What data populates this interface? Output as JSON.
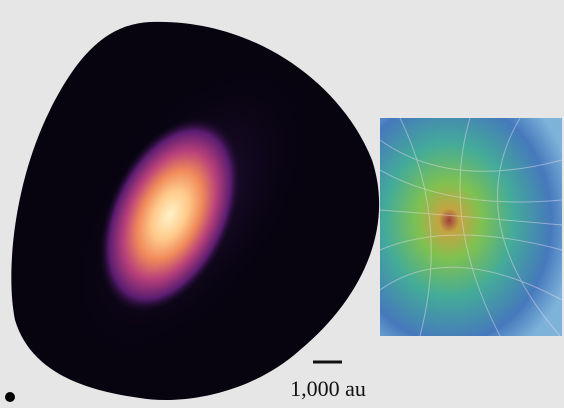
{
  "scale_bar": {
    "label": "1,000 au"
  }
}
